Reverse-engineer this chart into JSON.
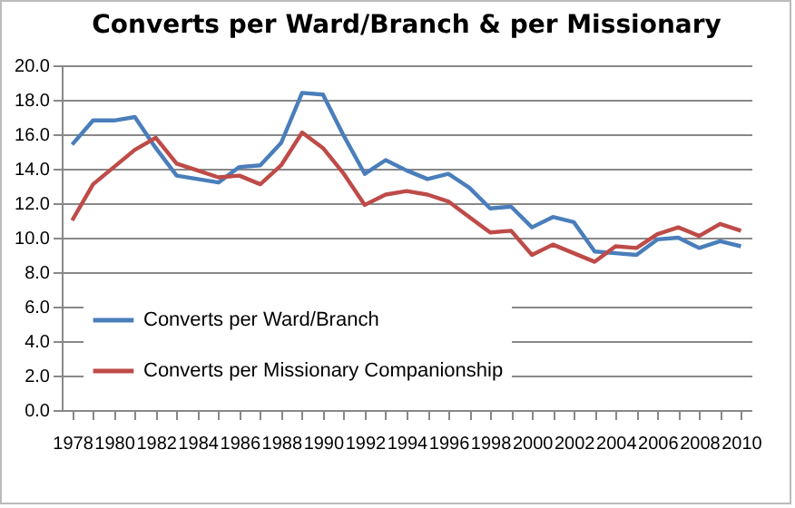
{
  "chart_data": {
    "type": "line",
    "title": "Converts per Ward/Branch & per Missionary",
    "x": [
      1978,
      1979,
      1980,
      1981,
      1982,
      1983,
      1984,
      1985,
      1986,
      1987,
      1988,
      1989,
      1990,
      1991,
      1992,
      1993,
      1994,
      1995,
      1996,
      1997,
      1998,
      1999,
      2000,
      2001,
      2002,
      2003,
      2004,
      2005,
      2006,
      2007,
      2008,
      2009,
      2010
    ],
    "series": [
      {
        "name": "Converts per Ward/Branch",
        "color": "#4a7ebb",
        "values": [
          15.4,
          16.8,
          16.8,
          17.0,
          15.2,
          13.6,
          13.4,
          13.2,
          14.1,
          14.2,
          15.5,
          18.4,
          18.3,
          15.9,
          13.7,
          14.5,
          13.9,
          13.4,
          13.7,
          12.9,
          11.7,
          11.8,
          10.6,
          11.2,
          10.9,
          9.2,
          9.1,
          9.0,
          9.9,
          10.0,
          9.4,
          9.8,
          9.5
        ]
      },
      {
        "name": "Converts per Missionary Companionship",
        "color": "#be4b48",
        "values": [
          11.0,
          13.1,
          14.1,
          15.1,
          15.8,
          14.3,
          13.9,
          13.5,
          13.6,
          13.1,
          14.2,
          16.1,
          15.2,
          13.7,
          11.9,
          12.5,
          12.7,
          12.5,
          12.1,
          11.2,
          10.3,
          10.4,
          9.0,
          9.6,
          9.1,
          8.6,
          9.5,
          9.4,
          10.2,
          10.6,
          10.1,
          10.8,
          10.4
        ]
      }
    ],
    "xlim": [
      1977.5,
      2010.5
    ],
    "xticks": [
      1978,
      {
        "value": 1979,
        "label": null
      },
      1980,
      {
        "value": 1981,
        "label": null
      },
      1982,
      {
        "value": 1983,
        "label": null
      },
      1984,
      {
        "value": 1985,
        "label": null
      },
      1986,
      {
        "value": 1987,
        "label": null
      },
      1988,
      {
        "value": 1989,
        "label": null
      },
      1990,
      {
        "value": 1991,
        "label": null
      },
      1992,
      {
        "value": 1993,
        "label": null
      },
      1994,
      {
        "value": 1995,
        "label": null
      },
      1996,
      {
        "value": 1997,
        "label": null
      },
      1998,
      {
        "value": 1999,
        "label": null
      },
      2000,
      {
        "value": 2001,
        "label": null
      },
      2002,
      {
        "value": 2003,
        "label": null
      },
      2004,
      {
        "value": 2005,
        "label": null
      },
      2006,
      {
        "value": 2007,
        "label": null
      },
      2008,
      {
        "value": 2009,
        "label": null
      },
      2010
    ],
    "ylim": [
      0,
      20
    ],
    "yticks": [
      {
        "value": 0,
        "label": "0.0"
      },
      {
        "value": 2,
        "label": "2.0"
      },
      {
        "value": 4,
        "label": "4.0"
      },
      {
        "value": 6,
        "label": "6.0"
      },
      {
        "value": 8,
        "label": "8.0"
      },
      {
        "value": 10,
        "label": "10.0"
      },
      {
        "value": 12,
        "label": "12.0"
      },
      {
        "value": 14,
        "label": "14.0"
      },
      {
        "value": 16,
        "label": "16.0"
      },
      {
        "value": 18,
        "label": "18.0"
      },
      {
        "value": 20,
        "label": "20.0"
      }
    ],
    "grid": "y",
    "legend": "bottom left"
  }
}
